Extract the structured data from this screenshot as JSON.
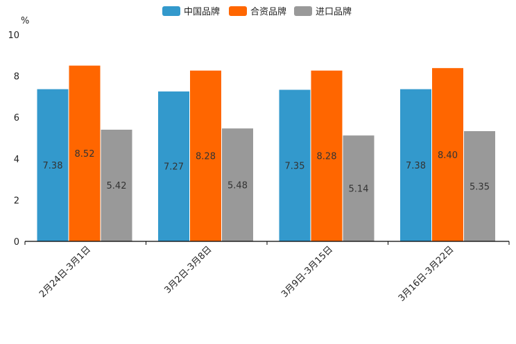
{
  "chart_data": {
    "type": "bar",
    "ylabel": "%",
    "ylim": [
      0,
      10
    ],
    "yticks": [
      0,
      2,
      4,
      6,
      8,
      10
    ],
    "legend_position": "top-center",
    "categories": [
      "2月24日-3月1日",
      "3月2日-3月8日",
      "3月9日-3月15日",
      "3月16日-3月22日"
    ],
    "series": [
      {
        "name": "中国品牌",
        "color": "#3399cc",
        "values": [
          7.38,
          7.27,
          7.35,
          7.38
        ],
        "labels": [
          "7.38",
          "7.27",
          "7.35",
          "7.38"
        ]
      },
      {
        "name": "合资品牌",
        "color": "#ff6600",
        "values": [
          8.52,
          8.28,
          8.28,
          8.4
        ],
        "labels": [
          "8.52",
          "8.28",
          "8.28",
          "8.40"
        ]
      },
      {
        "name": "进口品牌",
        "color": "#999999",
        "values": [
          5.42,
          5.48,
          5.14,
          5.35
        ],
        "labels": [
          "5.42",
          "5.48",
          "5.14",
          "5.35"
        ]
      }
    ]
  }
}
